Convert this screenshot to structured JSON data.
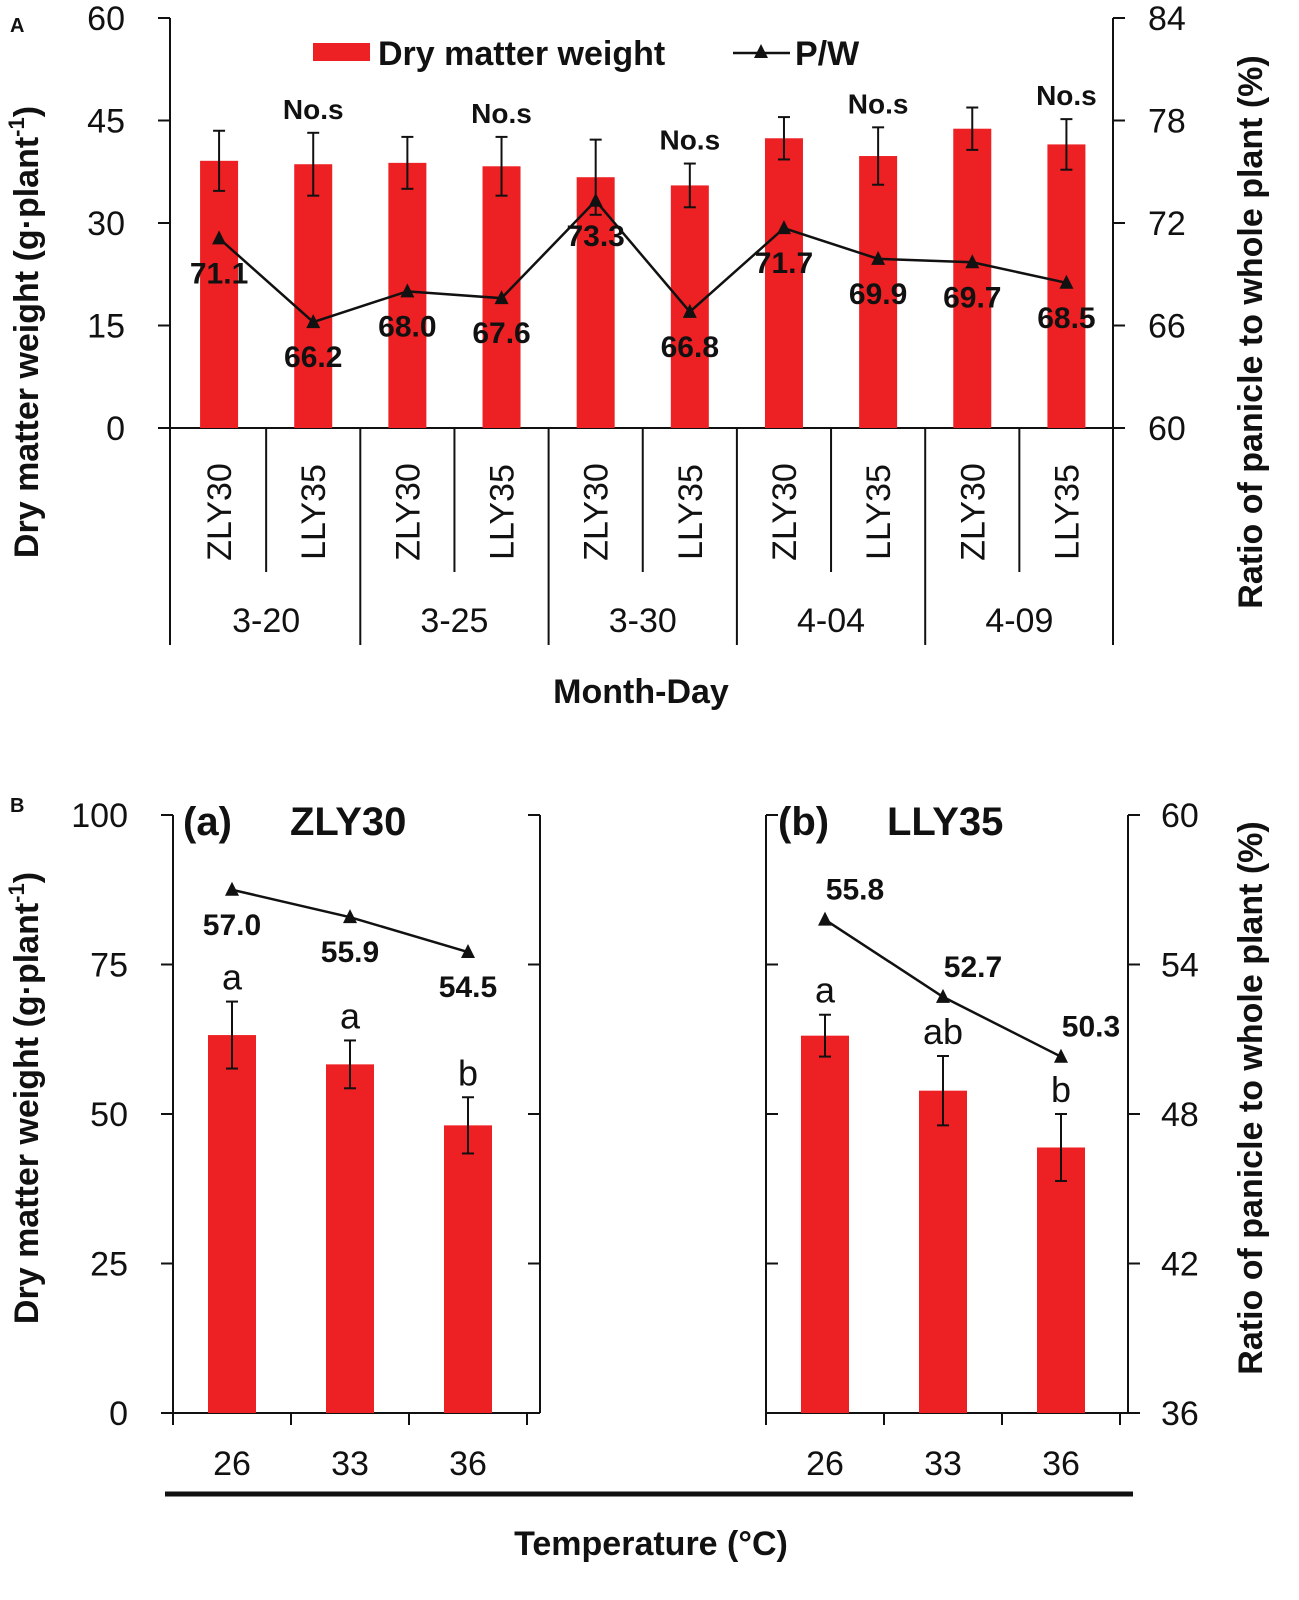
{
  "chart_data": [
    {
      "id": "A",
      "panel_label": "A",
      "type": "bar+line",
      "legend": {
        "bar": "Dry matter weight",
        "line": "P/W"
      },
      "ylabel": "Dry matter weight (g·plant",
      "ylabel_sup": "-1",
      "ylabel_end": ")",
      "y2label": "Ratio of panicle to whole plant (%)",
      "xlabel": "Month-Day",
      "ylim": [
        0,
        60
      ],
      "y2lim": [
        60,
        84
      ],
      "yticks": [
        "0",
        "15",
        "30",
        "45",
        "60"
      ],
      "y2ticks": [
        "60",
        "66",
        "72",
        "78",
        "84"
      ],
      "groups": [
        "3-20",
        "3-25",
        "3-30",
        "4-04",
        "4-09"
      ],
      "categories": [
        "ZLY30",
        "LLY35",
        "ZLY30",
        "LLY35",
        "ZLY30",
        "LLY35",
        "ZLY30",
        "LLY35",
        "ZLY30",
        "LLY35"
      ],
      "bar_values": [
        39.1,
        38.6,
        38.8,
        38.3,
        36.7,
        35.5,
        42.4,
        39.8,
        43.8,
        41.5
      ],
      "bar_errors": [
        4.4,
        4.6,
        3.8,
        4.3,
        5.5,
        3.2,
        3.1,
        4.2,
        3.1,
        3.7
      ],
      "ratio_values": [
        71.1,
        66.2,
        68.0,
        67.6,
        73.3,
        66.8,
        71.7,
        69.9,
        69.7,
        68.5
      ],
      "ratio_labels": [
        "71.1",
        "66.2",
        "68.0",
        "67.6",
        "73.3",
        "66.8",
        "71.7",
        "69.9",
        "69.7",
        "68.5"
      ],
      "significance": [
        "No.s",
        "No.s",
        "No.s",
        "No.s",
        "No.s"
      ]
    },
    {
      "id": "B",
      "panel_label": "B",
      "type": "bar+line",
      "ylabel": "Dry matter weight (g·plant",
      "ylabel_sup": "-1",
      "ylabel_end": ")",
      "y2label": "Ratio of panicle to whole plant (%)",
      "xlabel": "Temperature (°C)",
      "ylim": [
        0,
        100
      ],
      "y2lim": [
        36,
        60
      ],
      "yticks": [
        "0",
        "25",
        "50",
        "75",
        "100"
      ],
      "y2ticks": [
        "36",
        "42",
        "48",
        "54",
        "60"
      ],
      "subplots": [
        {
          "label": "(a)",
          "title": "ZLY30",
          "categories": [
            "26",
            "33",
            "36"
          ],
          "bar_values": [
            63.2,
            58.3,
            48.1
          ],
          "bar_errors": [
            5.6,
            4.0,
            4.7
          ],
          "letters": [
            "a",
            "a",
            "b"
          ],
          "ratio_values": [
            57.0,
            55.9,
            54.5
          ],
          "ratio_labels": [
            "57.0",
            "55.9",
            "54.5"
          ]
        },
        {
          "label": "(b)",
          "title": "LLY35",
          "categories": [
            "26",
            "33",
            "36"
          ],
          "bar_values": [
            63.1,
            53.9,
            44.4
          ],
          "bar_errors": [
            3.5,
            5.8,
            5.6
          ],
          "letters": [
            "a",
            "ab",
            "b"
          ],
          "ratio_values": [
            55.8,
            52.7,
            50.3
          ],
          "ratio_labels": [
            "55.8",
            "52.7",
            "50.3"
          ]
        }
      ]
    }
  ],
  "colors": {
    "bar": "#ed2024",
    "line": "#111111",
    "axis": "#111111"
  }
}
